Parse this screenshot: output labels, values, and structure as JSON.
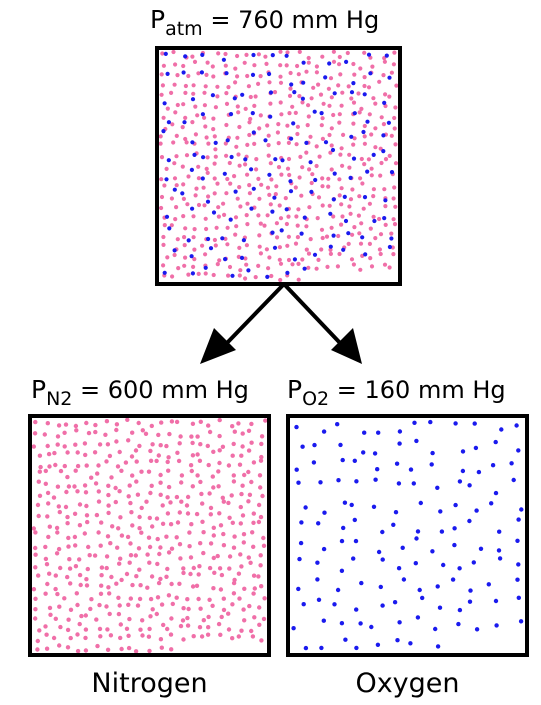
{
  "top": {
    "label_symbol": "P",
    "label_sub": "atm",
    "label_value": "= 760 mm Hg",
    "n2_dots": 520,
    "o2_dots": 140
  },
  "nitrogen": {
    "label_symbol": "P",
    "label_sub": "N2",
    "label_value": "= 600 mm Hg",
    "caption": "Nitrogen",
    "dots": 520
  },
  "oxygen": {
    "label_symbol": "P",
    "label_sub": "O2",
    "label_value": "= 160 mm Hg",
    "caption": "Oxygen",
    "dots": 140
  },
  "colors": {
    "nitrogen": "#f06fa8",
    "oxygen": "#1a1aee",
    "border": "#000000"
  }
}
